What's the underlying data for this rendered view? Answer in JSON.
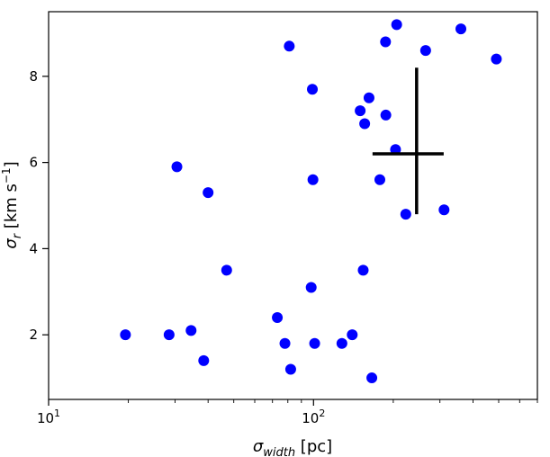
{
  "chart_data": {
    "type": "scatter",
    "x_scale": "log",
    "xlim": [
      10,
      700
    ],
    "ylim": [
      0.5,
      9.5
    ],
    "xlabel": {
      "main": "σ",
      "sub": "width",
      "unit": " [pc]"
    },
    "ylabel": {
      "main": "σ",
      "sub": "r",
      "unit": " [km s",
      "sup": "−1",
      "close": "]"
    },
    "x_ticks": [
      {
        "value": 10,
        "base": "10",
        "exp": "1"
      },
      {
        "value": 100,
        "base": "10",
        "exp": "2"
      }
    ],
    "y_ticks": [
      2,
      4,
      6,
      8
    ],
    "y_tick_labels": [
      "2",
      "4",
      "6",
      "8"
    ],
    "grid": false,
    "marker_color": "#0000ff",
    "errorbar_color": "#000000",
    "points": [
      {
        "x": 19.5,
        "y": 2.0
      },
      {
        "x": 28.5,
        "y": 2.0
      },
      {
        "x": 30.5,
        "y": 5.9
      },
      {
        "x": 34.5,
        "y": 2.1
      },
      {
        "x": 38.5,
        "y": 1.4
      },
      {
        "x": 40.0,
        "y": 5.3
      },
      {
        "x": 47.0,
        "y": 3.5
      },
      {
        "x": 73.0,
        "y": 2.4
      },
      {
        "x": 78.0,
        "y": 1.8
      },
      {
        "x": 81.0,
        "y": 8.7
      },
      {
        "x": 82.0,
        "y": 1.2
      },
      {
        "x": 98.0,
        "y": 3.1
      },
      {
        "x": 99.0,
        "y": 7.7
      },
      {
        "x": 99.5,
        "y": 5.6
      },
      {
        "x": 101.0,
        "y": 1.8
      },
      {
        "x": 128.0,
        "y": 1.8
      },
      {
        "x": 140.0,
        "y": 2.0
      },
      {
        "x": 150.0,
        "y": 7.2
      },
      {
        "x": 154.0,
        "y": 3.5
      },
      {
        "x": 156.0,
        "y": 6.9
      },
      {
        "x": 162.0,
        "y": 7.5
      },
      {
        "x": 166.0,
        "y": 1.0
      },
      {
        "x": 178.0,
        "y": 5.6
      },
      {
        "x": 187.0,
        "y": 8.8
      },
      {
        "x": 187.5,
        "y": 7.1
      },
      {
        "x": 204.0,
        "y": 6.3
      },
      {
        "x": 206.0,
        "y": 9.2
      },
      {
        "x": 223.0,
        "y": 4.8
      },
      {
        "x": 265.0,
        "y": 8.6
      },
      {
        "x": 311.0,
        "y": 4.9
      },
      {
        "x": 360.0,
        "y": 9.1
      },
      {
        "x": 490.0,
        "y": 8.4
      }
    ],
    "errorbar": {
      "x": 245,
      "y": 6.2,
      "xlow": 167,
      "xhigh": 310,
      "ylow": 4.8,
      "yhigh": 8.2
    }
  }
}
